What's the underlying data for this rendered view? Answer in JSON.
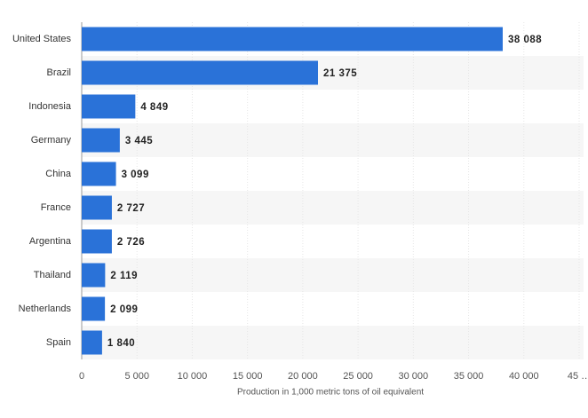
{
  "chart_data": {
    "type": "bar",
    "orientation": "horizontal",
    "x_label": "Production in 1,000 metric tons of oil equivalent",
    "categories": [
      "United States",
      "Brazil",
      "Indonesia",
      "Germany",
      "China",
      "France",
      "Argentina",
      "Thailand",
      "Netherlands",
      "Spain"
    ],
    "values": [
      38088,
      21375,
      4849,
      3445,
      3099,
      2727,
      2726,
      2119,
      2099,
      1840
    ],
    "value_labels": [
      "38 088",
      "21 375",
      "4 849",
      "3 445",
      "3 099",
      "2 727",
      "2 726",
      "2 119",
      "2 099",
      "1 840"
    ],
    "color": "#2a72d8",
    "xlim": [
      0,
      45000
    ],
    "xticks": [
      0,
      {
        "value": 5000,
        "label": "5 000"
      },
      {
        "value": 10000,
        "label": "10 000"
      },
      {
        "value": 15000,
        "label": "15 000"
      },
      {
        "value": 20000,
        "label": "20 000"
      },
      {
        "value": 25000,
        "label": "25 000"
      },
      {
        "value": 30000,
        "label": "30 000"
      },
      {
        "value": 35000,
        "label": "35 000"
      },
      {
        "value": 40000,
        "label": "40 000"
      },
      {
        "value": 45000,
        "label": "45 …"
      }
    ],
    "grid": true
  }
}
